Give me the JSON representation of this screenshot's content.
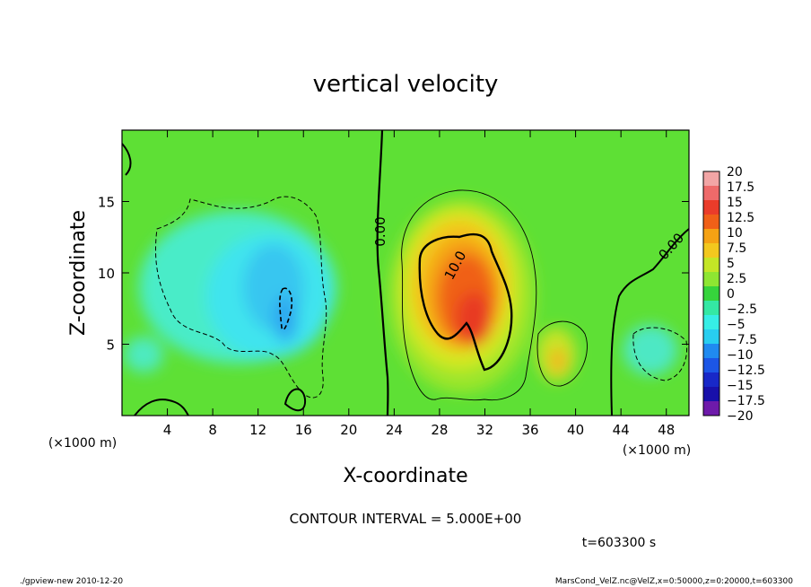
{
  "chart_data": {
    "type": "heatmap",
    "title": "vertical velocity",
    "xlabel": "X-coordinate",
    "ylabel": "Z-coordinate",
    "x_unit": "(×1000 m)",
    "y_unit": "(×1000 m)",
    "xlim": [
      0,
      50
    ],
    "ylim": [
      0,
      20
    ],
    "x_ticks": [
      4,
      8,
      12,
      16,
      20,
      24,
      28,
      32,
      36,
      40,
      44,
      48
    ],
    "y_ticks": [
      5,
      10,
      15
    ],
    "colorbar": {
      "labels": [
        "20",
        "17.5",
        "15",
        "12.5",
        "10",
        "7.5",
        "5",
        "2.5",
        "0",
        "−2.5",
        "−5",
        "−7.5",
        "−10",
        "−12.5",
        "−15",
        "−17.5",
        "−20"
      ],
      "colors": [
        "#f2a5a5",
        "#ee6a6a",
        "#ea3c2a",
        "#f06018",
        "#f5a214",
        "#f3c81e",
        "#c4e626",
        "#8ee632",
        "#36d43c",
        "#34e8a4",
        "#36eee6",
        "#28cef0",
        "#208af0",
        "#1c56e6",
        "#1828c8",
        "#1810aa",
        "#6e1aaa"
      ]
    },
    "contour_labels": [
      "0.00",
      "10.0",
      "0.00"
    ],
    "contour_interval_text": "CONTOUR INTERVAL = 5.000E+00",
    "time_text": "t=603300 s"
  },
  "footer": {
    "left": "./gpview-new   2010-12-20",
    "right": "MarsCond_VelZ.nc@VelZ,x=0:50000,z=0:20000,t=603300"
  }
}
